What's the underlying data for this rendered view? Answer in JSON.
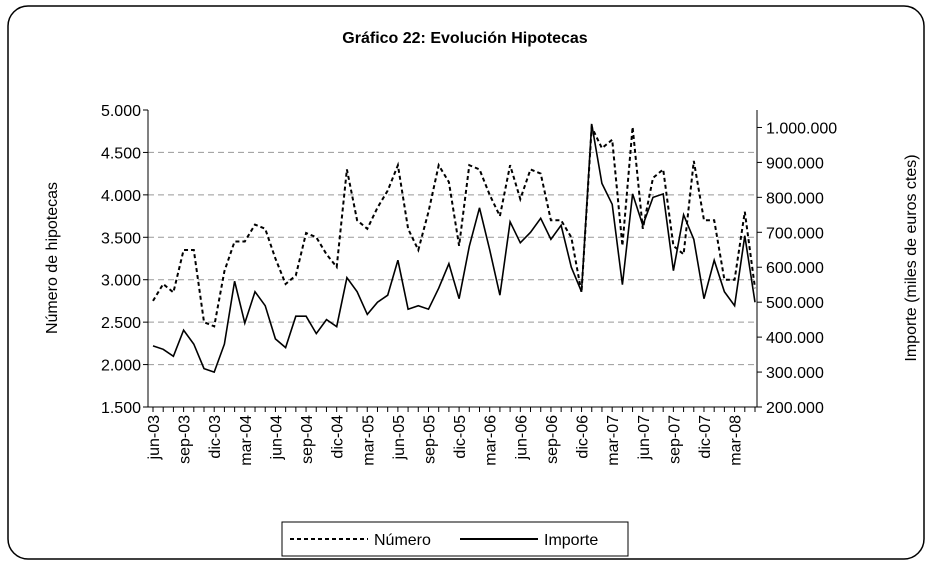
{
  "chart_data": {
    "type": "line",
    "title": "Gráfico 22: Evolución Hipotecas",
    "ylabel": "Número de hipotecas",
    "y2label": "Importe (miles de euros ctes)",
    "categories": [
      "jun-03",
      null,
      null,
      "sep-03",
      null,
      null,
      "dic-03",
      null,
      null,
      "mar-04",
      null,
      null,
      "jun-04",
      null,
      null,
      "sep-04",
      null,
      null,
      "dic-04",
      null,
      null,
      "mar-05",
      null,
      null,
      "jun-05",
      null,
      null,
      "sep-05",
      null,
      null,
      "dic-05",
      null,
      null,
      "mar-06",
      null,
      null,
      "jun-06",
      null,
      null,
      "sep-06",
      null,
      null,
      "dic-06",
      null,
      null,
      "mar-07",
      null,
      null,
      "jun-07",
      null,
      null,
      "sep-07",
      null,
      null,
      "dic-07",
      null,
      null,
      "mar-08",
      null,
      null
    ],
    "series": [
      {
        "name": "Número",
        "color": "#000000",
        "dash": "dashed",
        "axis": "y",
        "values": [
          2750,
          2950,
          2850,
          3350,
          3350,
          2500,
          2450,
          3100,
          3450,
          3450,
          3650,
          3600,
          3250,
          2950,
          3050,
          3550,
          3500,
          3300,
          3150,
          4300,
          3700,
          3600,
          3850,
          4050,
          4350,
          3600,
          3350,
          3800,
          4350,
          4150,
          3400,
          4350,
          4300,
          4000,
          3750,
          4350,
          3950,
          4300,
          4250,
          3700,
          3700,
          3500,
          2850,
          4800,
          4550,
          4650,
          3400,
          4800,
          3600,
          4200,
          4300,
          3400,
          3300,
          4400,
          3700,
          3700,
          3000,
          3000,
          3800,
          2900
        ]
      },
      {
        "name": "Importe",
        "color": "#000000",
        "dash": "solid",
        "axis": "y2",
        "values": [
          375000,
          365000,
          345000,
          420000,
          380000,
          310000,
          300000,
          380000,
          560000,
          440000,
          530000,
          490000,
          395000,
          370000,
          460000,
          460000,
          410000,
          450000,
          430000,
          570000,
          530000,
          465000,
          500000,
          520000,
          620000,
          480000,
          490000,
          480000,
          540000,
          610000,
          510000,
          660000,
          770000,
          650000,
          520000,
          730000,
          670000,
          700000,
          740000,
          680000,
          720000,
          600000,
          530000,
          1010000,
          840000,
          780000,
          550000,
          810000,
          720000,
          800000,
          810000,
          590000,
          750000,
          680000,
          510000,
          620000,
          530000,
          490000,
          690000,
          500000
        ]
      }
    ],
    "ylim": [
      1500,
      5000
    ],
    "yticks": [
      {
        "value": 1500,
        "label": "1.500"
      },
      {
        "value": 2000,
        "label": "2.000"
      },
      {
        "value": 2500,
        "label": "2.500"
      },
      {
        "value": 3000,
        "label": "3.000"
      },
      {
        "value": 3500,
        "label": "3.500"
      },
      {
        "value": 4000,
        "label": "4.000"
      },
      {
        "value": 4500,
        "label": "4.500"
      },
      {
        "value": 5000,
        "label": "5.000"
      }
    ],
    "y2lim": [
      200000,
      1050000
    ],
    "y2ticks": [
      {
        "value": 200000,
        "label": "200.000"
      },
      {
        "value": 300000,
        "label": "300.000"
      },
      {
        "value": 400000,
        "label": "400.000"
      },
      {
        "value": 500000,
        "label": "500.000"
      },
      {
        "value": 600000,
        "label": "600.000"
      },
      {
        "value": 700000,
        "label": "700.000"
      },
      {
        "value": 800000,
        "label": "800.000"
      },
      {
        "value": 900000,
        "label": "900.000"
      },
      {
        "value": 1000000,
        "label": "1.000.000"
      }
    ],
    "grid": true,
    "legend": "bottom"
  }
}
